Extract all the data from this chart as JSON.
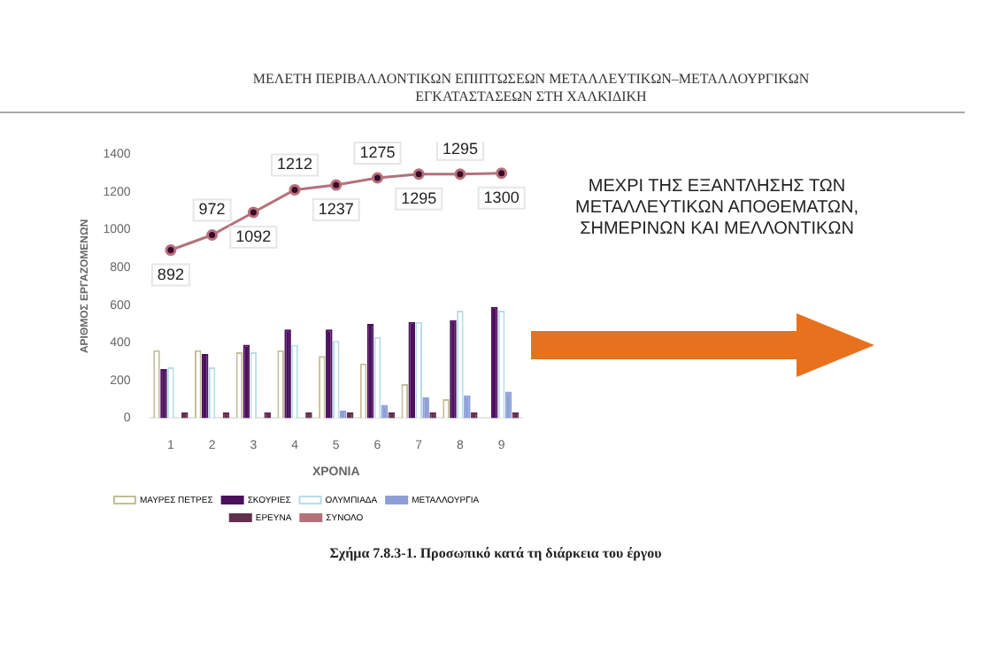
{
  "chart_data": {
    "type": "bar",
    "title": "ΜΕΛΕΤΗ ΠΕΡΙΒΑΛΛΟΝΤΙΚΩΝ ΕΠΙΠΤΩΣΕΩΝ ΜΕΤΑΛΛΕΥΤΙΚΩΝ–ΜΕΤΑΛΛΟΥΡΓΙΚΩΝ ΕΓΚΑΤΑΣΤΑΣΕΩΝ ΣΤΗ ΧΑΛΚΙΔΙΚΗ",
    "xlabel": "ΧΡΟΝΙΑ",
    "ylabel": "ΑΡΙΘΜΟΣ ΕΡΓΑΖΟΜΕΝΩΝ",
    "categories": [
      "1",
      "2",
      "3",
      "4",
      "5",
      "6",
      "7",
      "8",
      "9"
    ],
    "series": [
      {
        "name": "ΜΑΥΡΕΣ ΠΕΤΡΕΣ",
        "color": "#c4bd97",
        "values": [
          360,
          360,
          350,
          360,
          330,
          290,
          180,
          100,
          0
        ]
      },
      {
        "name": "ΣΚΟΥΡΙΕΣ",
        "color": "#4b0f5e",
        "values": [
          260,
          340,
          390,
          470,
          470,
          500,
          510,
          520,
          590
        ]
      },
      {
        "name": "ΟΛΥΜΠΙΑΔΑ",
        "color": "#b7dde8",
        "values": [
          270,
          270,
          350,
          390,
          410,
          430,
          510,
          570,
          570
        ]
      },
      {
        "name": "ΜΕΤΑΛΛΟΥΡΓΙΑ",
        "color": "#8e9fd8",
        "values": [
          0,
          0,
          0,
          0,
          40,
          70,
          110,
          120,
          140
        ]
      },
      {
        "name": "ΕΡΕΥΝΑ",
        "color": "#632f4f",
        "values": [
          30,
          30,
          30,
          30,
          30,
          30,
          30,
          30,
          30
        ]
      },
      {
        "name": "ΣΥΝΟΛΟ",
        "type": "line",
        "color": "#b5717b",
        "marker": "circle",
        "values": [
          892,
          972,
          1092,
          1212,
          1237,
          1275,
          1295,
          1295,
          1300
        ],
        "value_labels": [
          "892",
          "972",
          "1092",
          "1212",
          "1237",
          "1275",
          "1295",
          "1295",
          "1300"
        ]
      }
    ],
    "ylim": [
      0,
      1400
    ],
    "yticks": [
      0,
      200,
      400,
      600,
      800,
      1000,
      1200,
      1400
    ],
    "legend": "bottom",
    "grid": false,
    "annotations": [
      "ΜΕΧΡΙ ΤΗΣ ΕΞΑΝΤΛΗΣΗΣ ΤΩΝ ΜΕΤΑΛΛΕΥΤΙΚΩΝ ΑΠΟΘΕΜΑΤΩΝ, ΣΗΜΕΡΙΝΩΝ ΚΑΙ ΜΕΛΛΟΝΤΙΚΩΝ",
      "Σχήμα 7.8.3-1. Προσωπικό κατά τη διάρκεια του έργου"
    ]
  }
}
